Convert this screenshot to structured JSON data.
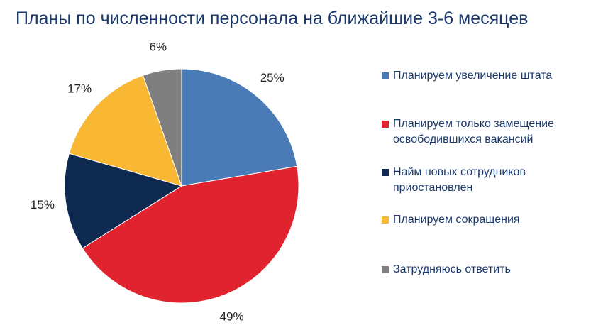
{
  "chart_data": {
    "type": "pie",
    "title": "Планы по численности персонала на ближайшие 3-6 месяцев",
    "categories": [
      "Планируем увеличение штата",
      "Планируем только замещение освободившихся вакансий",
      "Найм новых сотрудников приостановлен",
      "Планируем сокращения",
      "Затрудняюсь ответить"
    ],
    "values": [
      25,
      49,
      15,
      17,
      6
    ],
    "value_labels": [
      "25%",
      "49%",
      "15%",
      "17%",
      "6%"
    ],
    "colors": [
      "#4a7bb7",
      "#e0232e",
      "#0e2a50",
      "#f8b834",
      "#7f7f7f"
    ],
    "legend": "right"
  }
}
